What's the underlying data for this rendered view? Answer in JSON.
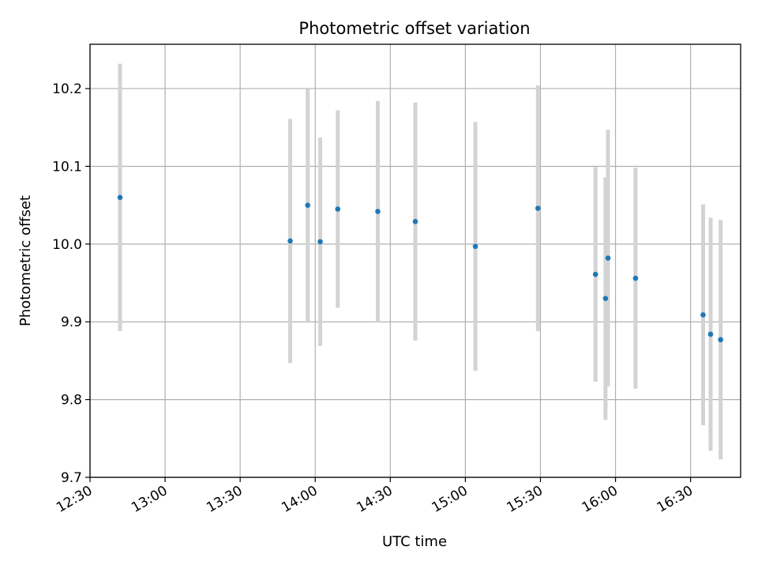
{
  "chart_data": {
    "type": "scatter",
    "title": "Photometric offset variation",
    "xlabel": "UTC time",
    "ylabel": "Photometric offset",
    "xlim": [
      "12:30",
      "16:50"
    ],
    "ylim": [
      9.7,
      10.257
    ],
    "grid": true,
    "x_ticks": [
      "12:30",
      "13:00",
      "13:30",
      "14:00",
      "14:30",
      "15:00",
      "15:30",
      "16:00",
      "16:30"
    ],
    "y_ticks": [
      "9.7",
      "9.8",
      "9.9",
      "10.0",
      "10.1",
      "10.2"
    ],
    "colors": {
      "points": "#1f77b4",
      "errorbars": "#d3d3d3",
      "grid": "#b0b0b0"
    },
    "points": [
      {
        "x": "12:42",
        "y": 10.06,
        "err": 0.172
      },
      {
        "x": "13:50",
        "y": 10.004,
        "err": 0.157
      },
      {
        "x": "13:57",
        "y": 10.05,
        "err": 0.15
      },
      {
        "x": "14:02",
        "y": 10.003,
        "err": 0.134
      },
      {
        "x": "14:09",
        "y": 10.045,
        "err": 0.127
      },
      {
        "x": "14:25",
        "y": 10.042,
        "err": 0.142
      },
      {
        "x": "14:40",
        "y": 10.029,
        "err": 0.153
      },
      {
        "x": "15:04",
        "y": 9.997,
        "err": 0.16
      },
      {
        "x": "15:29",
        "y": 10.046,
        "err": 0.158
      },
      {
        "x": "15:52",
        "y": 9.961,
        "err": 0.138
      },
      {
        "x": "15:56",
        "y": 9.93,
        "err": 0.156
      },
      {
        "x": "15:57",
        "y": 9.982,
        "err": 0.165
      },
      {
        "x": "16:08",
        "y": 9.956,
        "err": 0.142
      },
      {
        "x": "16:35",
        "y": 9.909,
        "err": 0.142
      },
      {
        "x": "16:38",
        "y": 9.884,
        "err": 0.15
      },
      {
        "x": "16:42",
        "y": 9.877,
        "err": 0.154
      }
    ]
  }
}
